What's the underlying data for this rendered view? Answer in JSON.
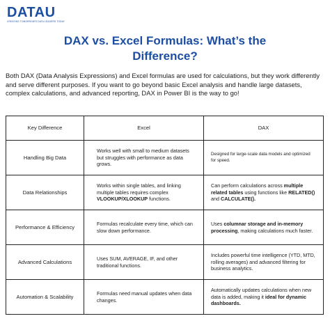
{
  "logo": {
    "text": "DATAU",
    "tagline": "CREATING TOMORROW'S DATA LEADERS TODAY"
  },
  "title": {
    "line1": "DAX vs. Excel Formulas: What’s the",
    "line2": "Difference?"
  },
  "intro": "Both DAX (Data Analysis Expressions) and Excel formulas are used for calculations, but they work differently and serve different purposes. If you want to go beyond basic Excel analysis and handle large datasets, complex calculations, and advanced reporting, DAX in Power BI is the way to go!",
  "table": {
    "headers": [
      "Key Difference",
      "Excel",
      "DAX"
    ],
    "rows": [
      {
        "key": "Handling Big Data",
        "excel": "Works well with small to medium datasets but struggles with performance as data grows.",
        "dax": "Designed for large-scale data models and optimized for speed."
      },
      {
        "key": "Data Relationships",
        "excel_pre": "Works within single tables, and linking multiple tables requires complex ",
        "excel_bold": "VLOOKUP/XLOOKUP",
        "excel_post": " functions.",
        "dax_pre": "Can perform calculations across ",
        "dax_bold1": "multiple related tables",
        "dax_mid": " using functions like ",
        "dax_bold2": "RELATED()",
        "dax_mid2": " and ",
        "dax_bold3": "CALCULATE().",
        "dax_post": ""
      },
      {
        "key": "Performance & Efficiency",
        "excel": "Formulas recalculate every time, which can slow down performance.",
        "dax_pre": "Uses ",
        "dax_bold1": "columnar storage and in-memory processing",
        "dax_post": ", making calculations much faster."
      },
      {
        "key": "Advanced Calculations",
        "excel": "Uses SUM, AVERAGE, IF, and other traditional functions.",
        "dax": "Includes powerful time intelligence (YTD, MTD, rolling averages) and advanced filtering for business analytics."
      },
      {
        "key": "Automation & Scalability",
        "excel": "Formulas need manual updates when data changes.",
        "dax_pre": "Automatically updates calculations when new data is added, making it ",
        "dax_bold1": "ideal for dynamic dashboards."
      }
    ]
  },
  "colors": {
    "brand": "#1c4fa1",
    "text": "#222222",
    "border": "#222222"
  }
}
